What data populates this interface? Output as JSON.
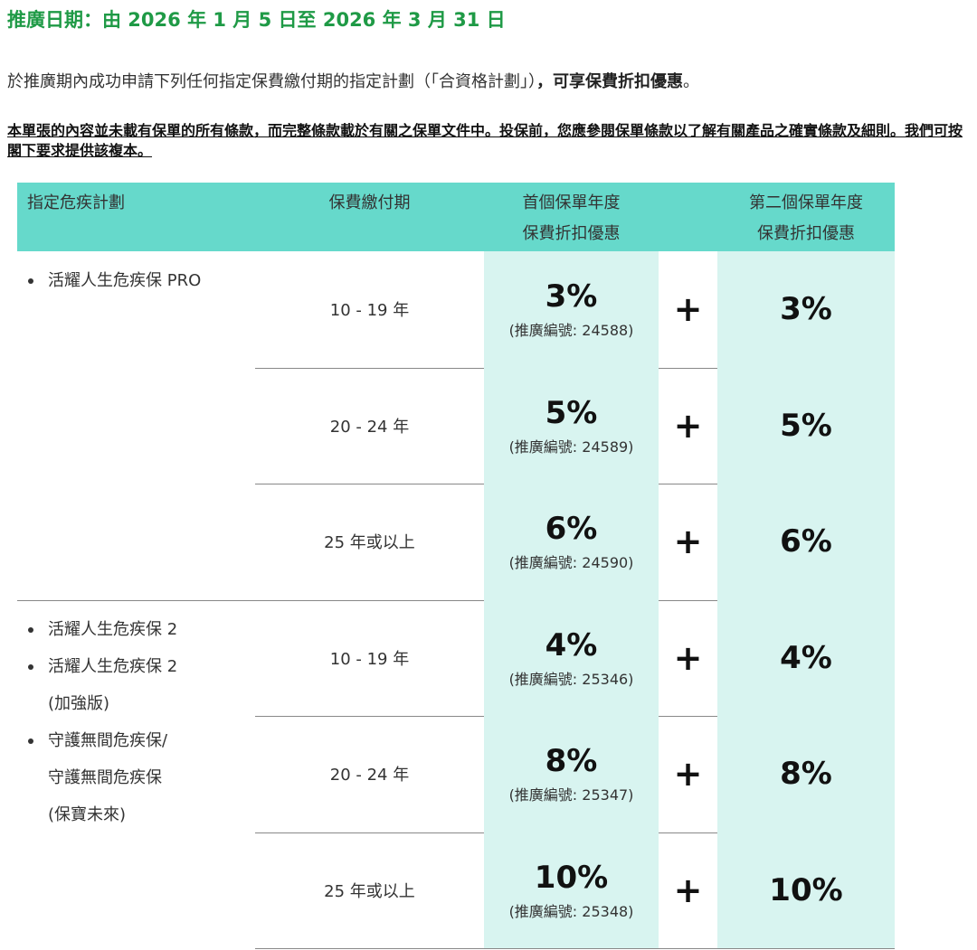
{
  "promo_period": "推廣日期：由 2026 年 1 月 5 日至 2026 年 3 月 31 日",
  "intro": {
    "text": "於推廣期內成功申請下列任何指定保費繳付期的指定計劃（「合資格計劃」）",
    "emphasis": "，可享保費折扣優惠",
    "end": "。"
  },
  "disclaimer": "本單張的內容並未載有保單的所有條款，而完整條款載於有關之保單文件中。投保前，您應參閱保單條款以了解有關產品之確實條款及細則。我們可按閣下要求提供該複本。",
  "table": {
    "headers": [
      [
        "指定危疾計劃"
      ],
      [
        "保費繳付期"
      ],
      [
        "首個保單年度",
        "保費折扣優惠"
      ],
      [
        "第二個保單年度",
        "保費折扣優惠"
      ]
    ],
    "plus_sign": "+",
    "groups": [
      {
        "plans": [
          [
            "活耀人生危疾保 PRO"
          ]
        ],
        "rows": [
          {
            "period": "10 - 19 年",
            "first_year": "3%",
            "code": "(推廣編號: 24588)",
            "second_year": "3%"
          },
          {
            "period": "20 - 24 年",
            "first_year": "5%",
            "code": "(推廣編號: 24589)",
            "second_year": "5%"
          },
          {
            "period": "25 年或以上",
            "first_year": "6%",
            "code": "(推廣編號: 24590)",
            "second_year": "6%"
          }
        ]
      },
      {
        "plans": [
          [
            "活耀人生危疾保 2"
          ],
          [
            "活耀人生危疾保 2",
            "(加強版)"
          ],
          [
            "守護無間危疾保/",
            "守護無間危疾保",
            "(保寶未來)"
          ]
        ],
        "rows": [
          {
            "period": "10 - 19 年",
            "first_year": "4%",
            "code": "(推廣編號: 25346)",
            "second_year": "4%"
          },
          {
            "period": "20 - 24 年",
            "first_year": "8%",
            "code": "(推廣編號: 25347)",
            "second_year": "8%"
          },
          {
            "period": "25 年或以上",
            "first_year": "10%",
            "code": "(推廣編號: 25348)",
            "second_year": "10%"
          }
        ]
      }
    ]
  }
}
